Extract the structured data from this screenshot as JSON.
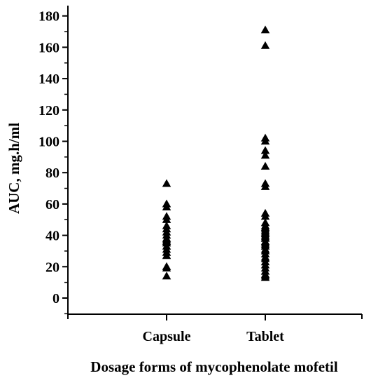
{
  "chart_data": {
    "type": "scatter",
    "xlabel": "Dosage forms of mycophenolate mofetil",
    "ylabel": "AUC, mg.h/ml",
    "categories": [
      "Capsule",
      "Tablet"
    ],
    "ylim": [
      -10,
      190
    ],
    "yticks": [
      0,
      20,
      40,
      60,
      80,
      100,
      120,
      140,
      160,
      180
    ],
    "marker": "triangle",
    "grid": false,
    "series": [
      {
        "category": "Capsule",
        "values": [
          73,
          60,
          58,
          52,
          50,
          46,
          44,
          42,
          40,
          38,
          37,
          36,
          35,
          33,
          31,
          29,
          27,
          20,
          19,
          14
        ]
      },
      {
        "category": "Tablet",
        "values": [
          171,
          161,
          102,
          100,
          94,
          91,
          84,
          73,
          71,
          54,
          52,
          48,
          46,
          45,
          44,
          43,
          42,
          41,
          40,
          39,
          38,
          36,
          35,
          34,
          33,
          31,
          30,
          28,
          26,
          25,
          23,
          21,
          19,
          17,
          15,
          14,
          13
        ]
      }
    ]
  }
}
